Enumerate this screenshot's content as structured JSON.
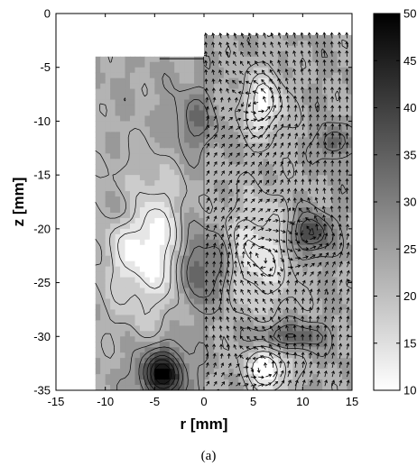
{
  "caption": "(a)",
  "chart_data": {
    "type": "heatmap",
    "title": "",
    "xlabel": "r [mm]",
    "ylabel": "z [mm]",
    "xlim": [
      -15,
      15
    ],
    "ylim": [
      -35,
      0
    ],
    "x_ticks": [
      -15,
      -10,
      -5,
      0,
      5,
      10,
      15
    ],
    "y_ticks": [
      0,
      -5,
      -10,
      -15,
      -20,
      -25,
      -30,
      -35
    ],
    "colorbar": {
      "min": 10,
      "max": 50,
      "ticks": [
        50,
        45,
        40,
        35,
        30,
        25,
        20,
        15,
        10
      ],
      "low_color": "#ffffff",
      "high_color": "#000000",
      "placement": "right"
    },
    "grid": false,
    "contour_field": {
      "extent_r": [
        -11,
        15
      ],
      "extent_z": [
        -35,
        -2
      ],
      "left_half_top_z": -4.2,
      "base_level": 24,
      "features": [
        {
          "r": -4.2,
          "z": -33.5,
          "level": 49,
          "sr": 1.6,
          "sz": 1.6,
          "label": "dark core bottom-left"
        },
        {
          "r": -1.0,
          "z": -23.5,
          "level": 36,
          "sr": 1.0,
          "sz": 2.8
        },
        {
          "r": 1.5,
          "z": -23.5,
          "level": 33,
          "sr": 1.2,
          "sz": 2.2
        },
        {
          "r": 10.8,
          "z": -20.5,
          "level": 40,
          "sr": 1.4,
          "sz": 1.4
        },
        {
          "r": 13.0,
          "z": -12.0,
          "level": 35,
          "sr": 1.0,
          "sz": 1.0
        },
        {
          "r": 8.5,
          "z": -30.0,
          "level": 36,
          "sr": 2.5,
          "sz": 0.9
        },
        {
          "r": -8.0,
          "z": -18.0,
          "level": 31,
          "sr": 1.2,
          "sz": 1.5
        },
        {
          "r": -1.0,
          "z": -10.0,
          "level": 32,
          "sr": 1.5,
          "sz": 2.0
        },
        {
          "r": -6.0,
          "z": -21.5,
          "level": 10,
          "sr": 2.8,
          "sz": 4.5,
          "label": "white region"
        },
        {
          "r": 5.5,
          "z": -22.5,
          "level": 13,
          "sr": 2.5,
          "sz": 3.5
        },
        {
          "r": 6.0,
          "z": -8.5,
          "level": 11,
          "sr": 1.5,
          "sz": 2.0
        },
        {
          "r": 6.5,
          "z": -33.0,
          "level": 10,
          "sr": 1.6,
          "sz": 1.6
        }
      ],
      "contour_levels": [
        14,
        18,
        22,
        26,
        30,
        34,
        38,
        42,
        46
      ]
    },
    "vector_field": {
      "r_range": [
        0,
        15
      ],
      "z_range": [
        -35,
        -2
      ],
      "description": "velocity arrows over right half (r ≥ 0)"
    }
  }
}
